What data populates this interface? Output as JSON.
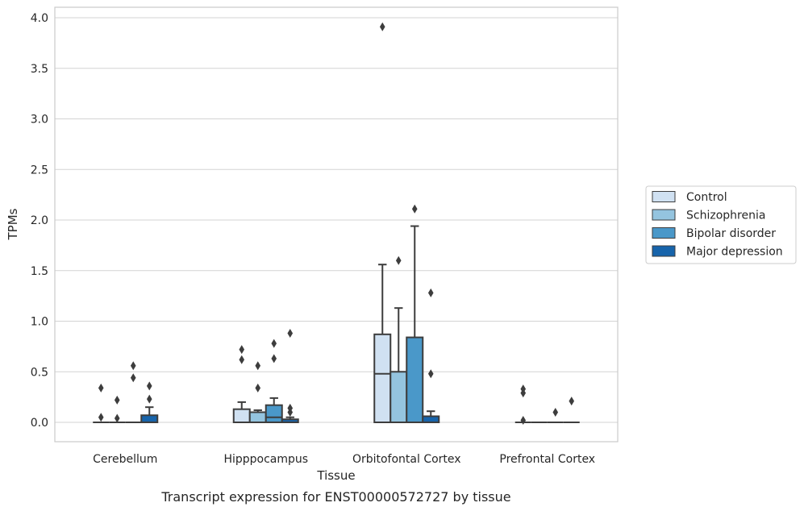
{
  "chart_data": {
    "type": "box",
    "caption": "Transcript expression for ENST00000572727 by tissue",
    "xlabel": "Tissue",
    "ylabel": "TPMs",
    "ylim": [
      -0.19,
      4.1
    ],
    "yticks": [
      "0.0",
      "0.5",
      "1.0",
      "1.5",
      "2.0",
      "2.5",
      "3.0",
      "3.5",
      "4.0"
    ],
    "ytick_values": [
      0,
      0.5,
      1,
      1.5,
      2,
      2.5,
      3,
      3.5,
      4
    ],
    "grid": true,
    "legend_position": "right",
    "categories": [
      "Cerebellum",
      "Hipppocampus",
      "Orbitofontal Cortex",
      "Prefrontal Cortex"
    ],
    "series": [
      {
        "name": "Control",
        "color": "#d0e1f2",
        "boxes": [
          {
            "q1": 0,
            "median": 0,
            "q3": 0,
            "whislo": 0,
            "whishi": 0,
            "fliers": [
              0.05,
              0.34
            ]
          },
          {
            "q1": 0,
            "median": 0,
            "q3": 0.13,
            "whislo": 0,
            "whishi": 0.2,
            "fliers": [
              0.62,
              0.72
            ]
          },
          {
            "q1": 0,
            "median": 0.48,
            "q3": 0.87,
            "whislo": 0,
            "whishi": 1.56,
            "fliers": [
              3.91
            ]
          },
          {
            "q1": 0,
            "median": 0,
            "q3": 0,
            "whislo": 0,
            "whishi": 0,
            "fliers": [
              0.02,
              0.29,
              0.33
            ]
          }
        ]
      },
      {
        "name": "Schizophrenia",
        "color": "#94c4df",
        "boxes": [
          {
            "q1": 0,
            "median": 0,
            "q3": 0,
            "whislo": 0,
            "whishi": 0,
            "fliers": [
              0.04,
              0.22
            ]
          },
          {
            "q1": 0,
            "median": 0,
            "q3": 0.1,
            "whislo": 0,
            "whishi": 0.12,
            "fliers": [
              0.34,
              0.56
            ]
          },
          {
            "q1": 0,
            "median": 0,
            "q3": 0.5,
            "whislo": 0,
            "whishi": 1.13,
            "fliers": [
              1.6
            ]
          },
          {
            "q1": 0,
            "median": 0,
            "q3": 0,
            "whislo": 0,
            "whishi": 0,
            "fliers": []
          }
        ]
      },
      {
        "name": "Bipolar disorder",
        "color": "#4a98c9",
        "boxes": [
          {
            "q1": 0,
            "median": 0,
            "q3": 0,
            "whislo": 0,
            "whishi": 0,
            "fliers": [
              0.44,
              0.56
            ]
          },
          {
            "q1": 0,
            "median": 0.05,
            "q3": 0.17,
            "whislo": 0,
            "whishi": 0.24,
            "fliers": [
              0.63,
              0.78
            ]
          },
          {
            "q1": 0,
            "median": 0,
            "q3": 0.84,
            "whislo": 0,
            "whishi": 1.94,
            "fliers": [
              2.11
            ]
          },
          {
            "q1": 0,
            "median": 0,
            "q3": 0,
            "whislo": 0,
            "whishi": 0,
            "fliers": [
              0.1
            ]
          }
        ]
      },
      {
        "name": "Major depression",
        "color": "#1764ab",
        "boxes": [
          {
            "q1": 0,
            "median": 0,
            "q3": 0.07,
            "whislo": 0,
            "whishi": 0.15,
            "fliers": [
              0.23,
              0.36
            ]
          },
          {
            "q1": 0,
            "median": 0,
            "q3": 0.03,
            "whislo": 0,
            "whishi": 0.05,
            "fliers": [
              0.1,
              0.14,
              0.88
            ]
          },
          {
            "q1": 0,
            "median": 0,
            "q3": 0.06,
            "whislo": 0,
            "whishi": 0.11,
            "fliers": [
              0.48,
              1.28
            ]
          },
          {
            "q1": 0,
            "median": 0,
            "q3": 0,
            "whislo": 0,
            "whishi": 0,
            "fliers": [
              0.21
            ]
          }
        ]
      }
    ]
  }
}
